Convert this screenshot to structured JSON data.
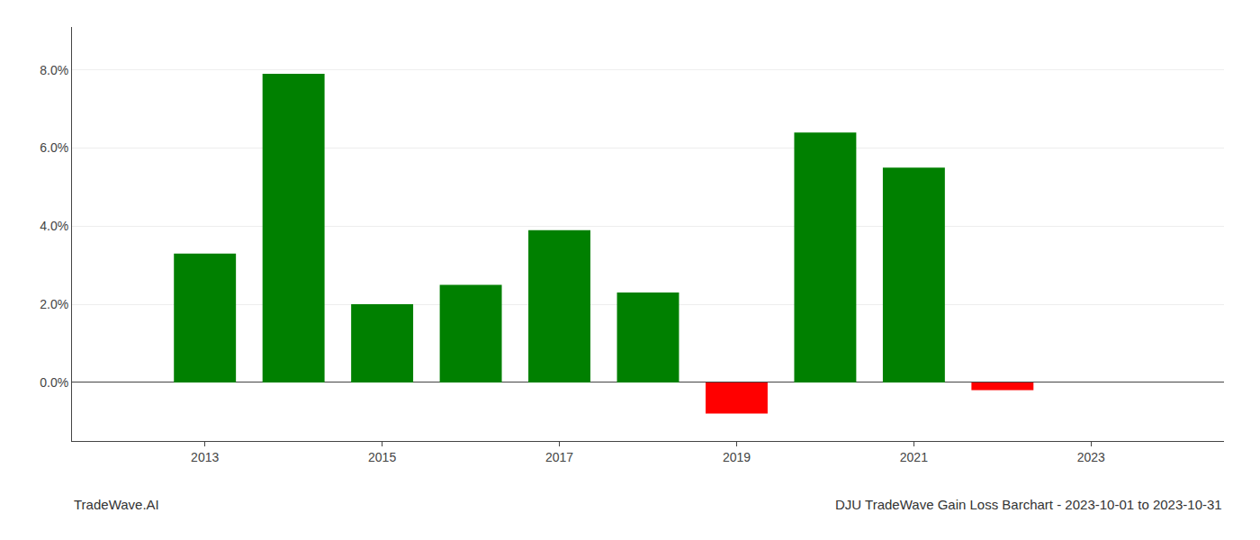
{
  "chart_data": {
    "type": "bar",
    "title": "DJU TradeWave Gain Loss Barchart - 2023-10-01 to 2023-10-31",
    "annotations": [
      {
        "text": "TradeWave.AI"
      }
    ],
    "x": [
      2013,
      2014,
      2015,
      2016,
      2017,
      2018,
      2019,
      2020,
      2021,
      2022,
      2023
    ],
    "values": [
      0.033,
      0.079,
      0.02,
      0.025,
      0.039,
      0.023,
      -0.008,
      0.064,
      0.055,
      -0.002,
      0.0
    ],
    "colors": [
      "#008000",
      "#008000",
      "#008000",
      "#008000",
      "#008000",
      "#008000",
      "#ff0000",
      "#008000",
      "#008000",
      "#ff0000",
      "#ff0000"
    ],
    "xlim": [
      2011.5,
      2024.5
    ],
    "xticks": [
      2013,
      2015,
      2017,
      2019,
      2021,
      2023
    ],
    "ylim": [
      -0.015,
      0.091
    ],
    "yticks": [
      {
        "value": 0.0,
        "label": "0.0%"
      },
      {
        "value": 0.02,
        "label": "2.0%"
      },
      {
        "value": 0.04,
        "label": "4.0%"
      },
      {
        "value": 0.06,
        "label": "6.0%"
      },
      {
        "value": 0.08,
        "label": "8.0%"
      }
    ],
    "grid": true
  }
}
